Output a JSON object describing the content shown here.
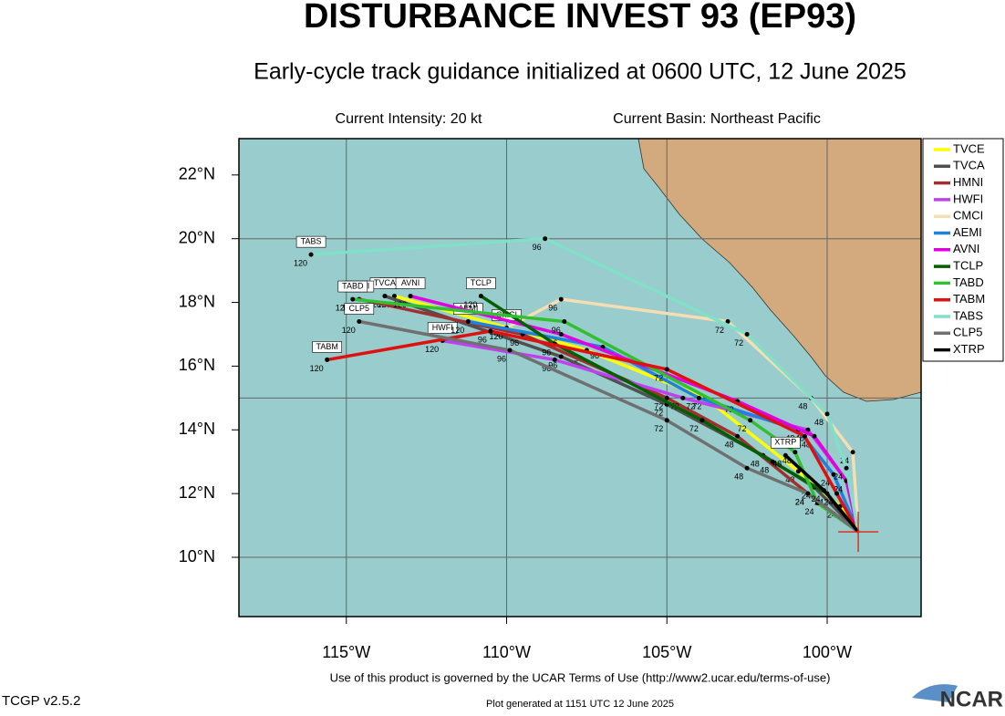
{
  "chart_data": {
    "type": "track",
    "title": "DISTURBANCE INVEST 93 (EP93)",
    "subtitle": "Early-cycle track guidance initialized at 0600 UTC, 12 June 2025",
    "current_intensity": "Current Intensity: 20 kt",
    "current_basin": "Current Basin: Northeast Pacific",
    "footer": "Use of this product is governed by the UCAR Terms of Use (http://www2.ucar.edu/terms-of-use)",
    "version": "TCGP v2.5.2",
    "generated": "Plot generated at 1151 UTC   12 June 2025",
    "logo": "NCAR",
    "xlim": [
      -118.35,
      -97.07
    ],
    "ylim": [
      8.14,
      23.14
    ],
    "xticks": [
      {
        "value": -115,
        "label": "115°W"
      },
      {
        "value": -110,
        "label": "110°W"
      },
      {
        "value": -105,
        "label": "105°W"
      },
      {
        "value": -100,
        "label": "100°W"
      }
    ],
    "yticks": [
      {
        "value": 10,
        "label": "10°N"
      },
      {
        "value": 12,
        "label": "12°N"
      },
      {
        "value": 14,
        "label": "14°N"
      },
      {
        "value": 16,
        "label": "16°N"
      },
      {
        "value": 18,
        "label": "18°N"
      },
      {
        "value": 20,
        "label": "20°N"
      },
      {
        "value": 22,
        "label": "22°N"
      }
    ],
    "lat_grid": [
      10,
      15,
      20
    ],
    "initial_position": {
      "x": -99.03,
      "y": 10.8
    },
    "hours": [
      24,
      48,
      72,
      96,
      120
    ],
    "series": [
      {
        "name": "TVCE",
        "color": "#ffff00",
        "x": [
          -99.6,
          -100.9,
          -103.8,
          -107.5,
          -113.5
        ],
        "y": [
          11.6,
          12.7,
          15.0,
          16.5,
          18.2
        ]
      },
      {
        "name": "TVCA",
        "color": "#505050",
        "x": [
          -100.4,
          -102.0,
          -105.0,
          -108.3,
          -113.8
        ],
        "y": [
          12.2,
          13.2,
          14.8,
          16.3,
          18.2
        ]
      },
      {
        "name": "HMNI",
        "color": "#a03030",
        "x": [
          -100.6,
          -102.8,
          -105.0,
          -109.5,
          -114.6
        ],
        "y": [
          12.0,
          13.8,
          15.0,
          17.0,
          18.1
        ]
      },
      {
        "name": "HWFI",
        "color": "#c040f0",
        "x": [
          -99.4,
          -100.6,
          -104.5,
          -108.5,
          -112.0
        ],
        "y": [
          12.4,
          14.0,
          15.0,
          16.2,
          16.8
        ]
      },
      {
        "name": "CMCI",
        "color": "#f5deb3",
        "x": [
          -99.2,
          -100.5,
          -103.1,
          -108.3,
          -110.0
        ],
        "y": [
          13.3,
          15.0,
          17.4,
          18.1,
          17.2
        ]
      },
      {
        "name": "AEMI",
        "color": "#2080e0",
        "x": [
          -99.8,
          -100.9,
          -104.0,
          -107.0,
          -111.2
        ],
        "y": [
          12.6,
          14.0,
          15.0,
          16.6,
          17.4
        ]
      },
      {
        "name": "AVNI",
        "color": "#e000e0",
        "x": [
          -99.4,
          -100.4,
          -102.8,
          -108.3,
          -113.0
        ],
        "y": [
          12.4,
          13.8,
          14.9,
          17.0,
          18.2
        ]
      },
      {
        "name": "TCLP",
        "color": "#006000",
        "x": [
          -100.0,
          -101.7,
          -103.9,
          -108.5,
          -110.8
        ],
        "y": [
          12.0,
          13.0,
          14.3,
          16.7,
          18.2
        ]
      },
      {
        "name": "TABD",
        "color": "#30c030",
        "x": [
          -100.3,
          -101.0,
          -102.4,
          -108.2,
          -114.8
        ],
        "y": [
          11.7,
          13.3,
          14.3,
          17.4,
          18.1
        ]
      },
      {
        "name": "TABM",
        "color": "#e01010",
        "x": [
          -99.7,
          -100.7,
          -105.0,
          -110.5,
          -115.6
        ],
        "y": [
          12.0,
          13.8,
          15.9,
          17.1,
          16.2
        ]
      },
      {
        "name": "TABS",
        "color": "#80e0c8",
        "x": [
          -99.4,
          -100.0,
          -102.5,
          -108.8,
          -116.1
        ],
        "y": [
          12.8,
          14.5,
          17.0,
          20.0,
          19.5
        ]
      },
      {
        "name": "CLP5",
        "color": "#707070",
        "x": [
          -100.6,
          -102.5,
          -105.0,
          -109.9,
          -114.6
        ],
        "y": [
          12.0,
          12.8,
          14.3,
          16.5,
          17.4
        ]
      },
      {
        "name": "XTRP",
        "color": "#000000",
        "x": [
          -100.1,
          -101.3,
          null,
          null,
          null
        ],
        "y": [
          12.1,
          13.2,
          null,
          null,
          null
        ]
      }
    ]
  }
}
